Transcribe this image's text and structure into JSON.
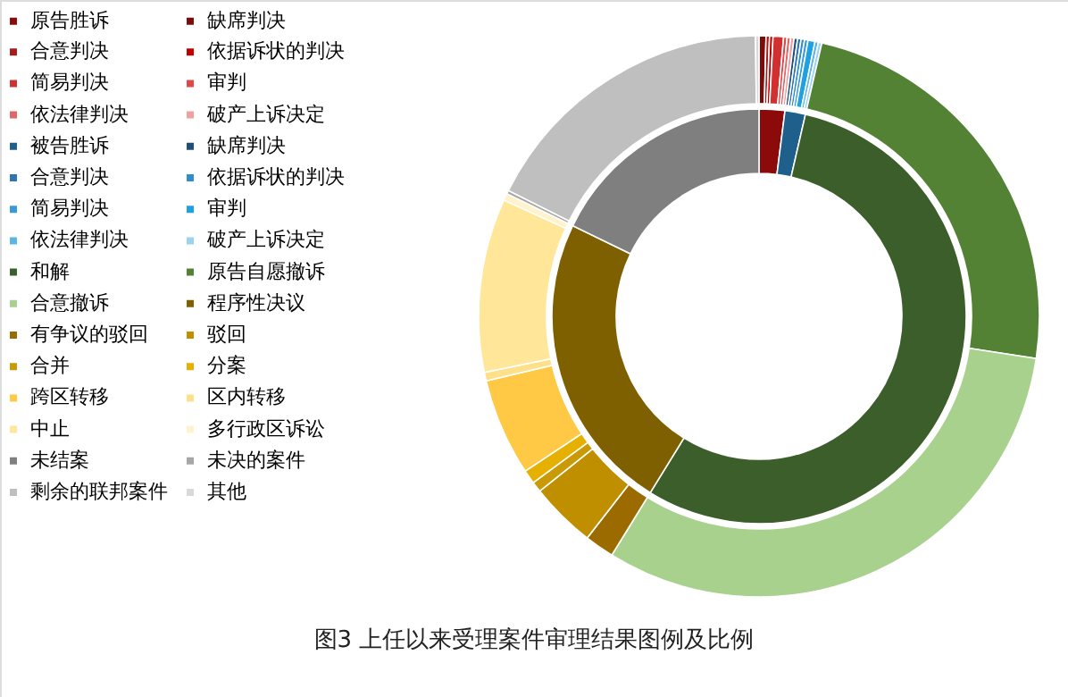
{
  "chart_data": {
    "type": "donut",
    "categories": [
      "原告胜诉",
      "缺席判决",
      "合意判决",
      "依据诉状的判决",
      "简易判决",
      "审判",
      "依法律判决",
      "破产上诉决定",
      "被告胜诉",
      "缺席判决",
      "合意判决",
      "依据诉状的判决",
      "简易判决",
      "审判",
      "依法律判决",
      "破产上诉决定",
      "和解",
      "原告自愿撤诉",
      "合意撤诉",
      "程序性决议",
      "有争议的驳回",
      "驳回",
      "合并",
      "分案",
      "跨区转移",
      "区内转移",
      "中止",
      "多行政区诉讼",
      "未结案",
      "未决的案件",
      "剩余的联邦案件",
      "其他"
    ],
    "colors": [
      "#8b0a0a",
      "#7a0c0c",
      "#a51c1c",
      "#c00000",
      "#d03030",
      "#e04848",
      "#e06666",
      "#f0a0a0",
      "#1f5f8b",
      "#1f4e79",
      "#2e75b6",
      "#2f8fce",
      "#3a9ad9",
      "#1fa0e0",
      "#5bb5e8",
      "#9dd3f0",
      "#3b5e2b",
      "#548235",
      "#a9d18e",
      "#7f6000",
      "#9c6b00",
      "#bf8f00",
      "#c99a06",
      "#e6b000",
      "#ffc845",
      "#ffe08a",
      "#ffe699",
      "#fff2cc",
      "#7f7f7f",
      "#a6a6a6",
      "#bfbfbf",
      "#d9d9d9"
    ],
    "series": [
      {
        "values": [
          2.0,
          null,
          null,
          null,
          null,
          null,
          null,
          null,
          1.6,
          null,
          null,
          null,
          null,
          null,
          null,
          null,
          55.2,
          null,
          null,
          23.4,
          null,
          null,
          null,
          null,
          null,
          null,
          null,
          null,
          17.8,
          null,
          null,
          null
        ]
      },
      {
        "values": [
          null,
          0.4,
          0.2,
          0.2,
          0.6,
          0.2,
          0.2,
          0.2,
          null,
          0.2,
          0.2,
          0.2,
          0.2,
          0.4,
          0.2,
          0.2,
          null,
          23.8,
          31.4,
          null,
          1.7,
          3.8,
          0.6,
          0.8,
          5.6,
          0.5,
          10.0,
          0.4,
          null,
          0.2,
          17.4,
          0.2
        ]
      }
    ],
    "legend": "left",
    "annotations": [
      "图3 上任以来受理案件审理结果图例及比例"
    ]
  }
}
